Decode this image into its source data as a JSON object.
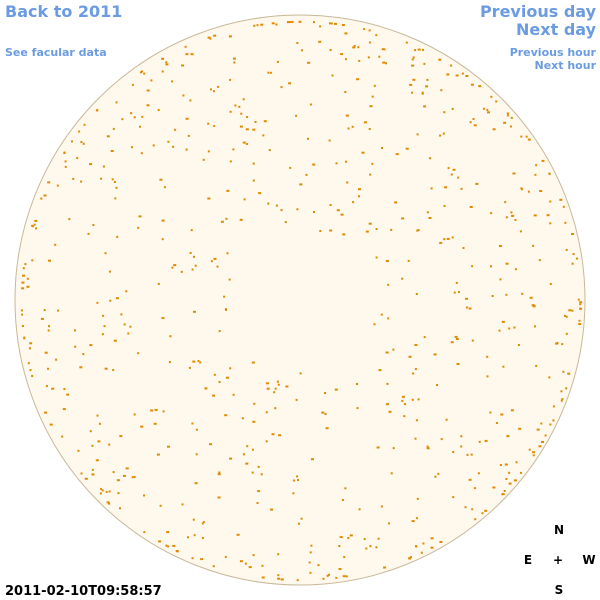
{
  "nav": {
    "back_year": "Back to 2011",
    "facular_data": "See facular data",
    "previous_day": "Previous day",
    "next_day": "Next day",
    "previous_hour": "Previous hour",
    "next_hour": "Next hour"
  },
  "timestamp": "2011-02-10T09:58:57",
  "compass": {
    "north": "N",
    "east": "E",
    "center": "+",
    "west": "W",
    "south": "S"
  }
}
